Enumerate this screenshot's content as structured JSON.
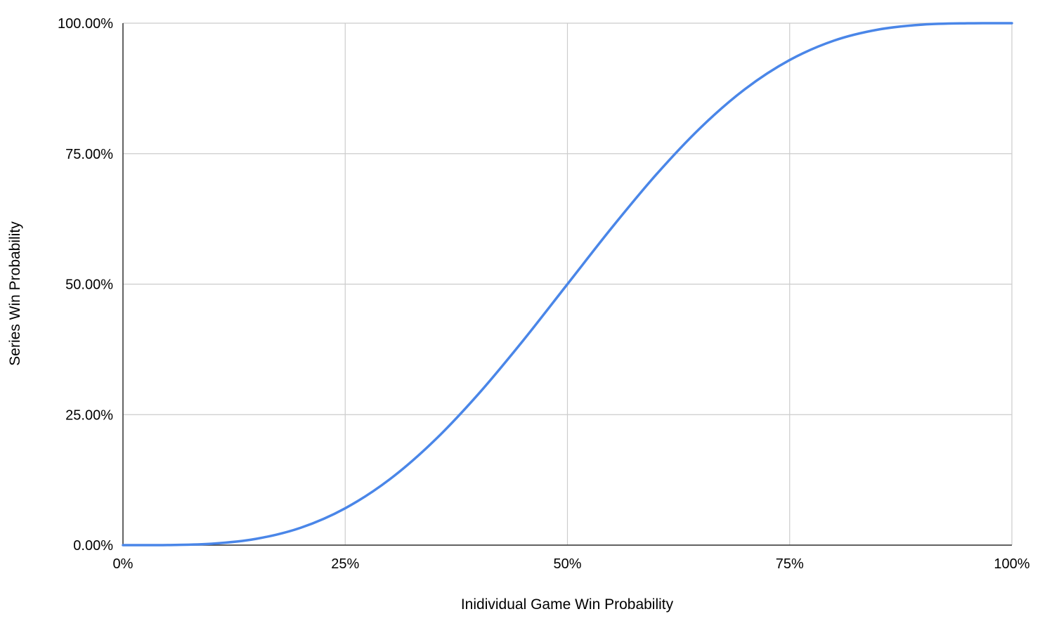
{
  "chart_data": {
    "type": "line",
    "title": "",
    "xlabel": "Inidividual Game Win Probability",
    "ylabel": "Series Win Probability",
    "xlim": [
      0,
      1
    ],
    "ylim": [
      0,
      1
    ],
    "x_ticks": [
      {
        "value": 0,
        "label": "0%"
      },
      {
        "value": 0.25,
        "label": "25%"
      },
      {
        "value": 0.5,
        "label": "50%"
      },
      {
        "value": 0.75,
        "label": "75%"
      },
      {
        "value": 1,
        "label": "100%"
      }
    ],
    "y_ticks": [
      {
        "value": 0,
        "label": "0.00%"
      },
      {
        "value": 0.25,
        "label": "25.00%"
      },
      {
        "value": 0.5,
        "label": "50.00%"
      },
      {
        "value": 0.75,
        "label": "75.00%"
      },
      {
        "value": 1,
        "label": "100.00%"
      }
    ],
    "grid": true,
    "legend": "none",
    "series_color": "#4a86e8",
    "series": [
      {
        "x": [
          0,
          0.05,
          0.1,
          0.15,
          0.2,
          0.25,
          0.3,
          0.35,
          0.4,
          0.45,
          0.5,
          0.55,
          0.6,
          0.65,
          0.7,
          0.75,
          0.8,
          0.85,
          0.9,
          0.95,
          1
        ],
        "values": [
          0,
          0.0002,
          0.0027,
          0.0121,
          0.0333,
          0.0706,
          0.126,
          0.1998,
          0.2898,
          0.3917,
          0.5,
          0.6083,
          0.7102,
          0.8002,
          0.874,
          0.9294,
          0.9667,
          0.9879,
          0.9973,
          0.9998,
          1
        ]
      }
    ]
  }
}
